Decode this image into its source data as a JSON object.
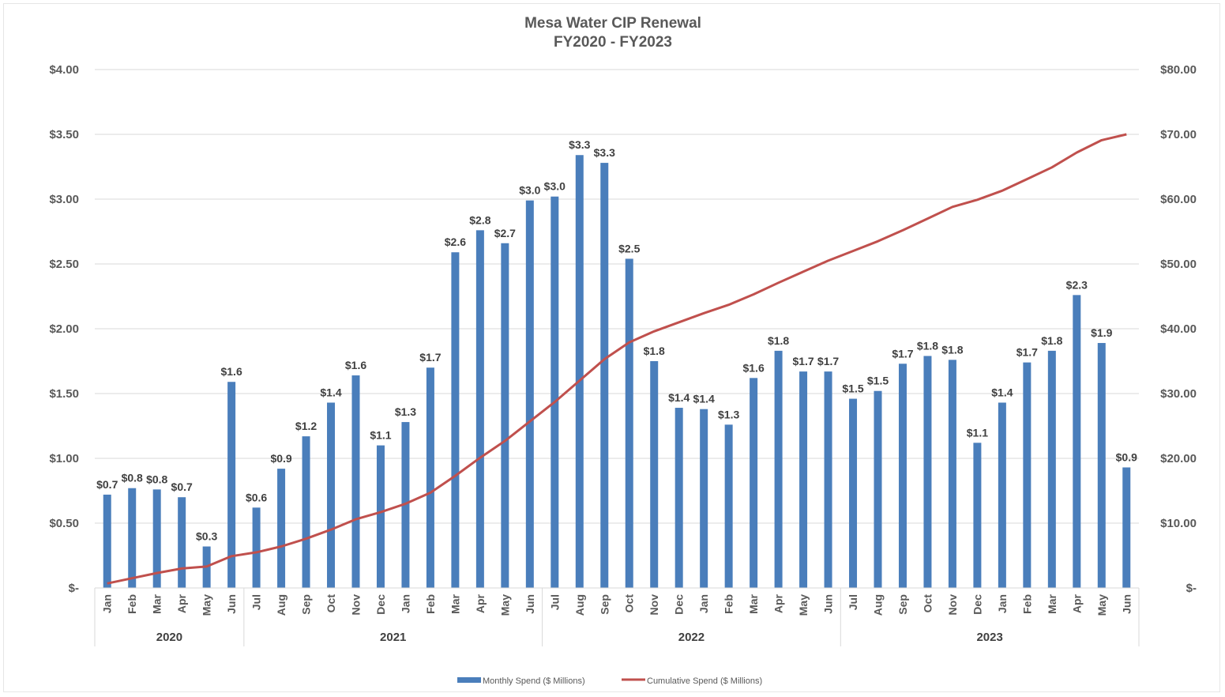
{
  "chart_data": {
    "type": "bar",
    "title": "Mesa Water CIP Renewal",
    "subtitle": "FY2020 - FY2023",
    "xlabel": "",
    "ylabel": "",
    "grid": true,
    "legend_placement": "bottom",
    "y_left": {
      "range": [
        0,
        4
      ],
      "ticks": [
        0,
        0.5,
        1.0,
        1.5,
        2.0,
        2.5,
        3.0,
        3.5,
        4.0
      ],
      "tick_labels": [
        "$-",
        "$0.50",
        "$1.00",
        "$1.50",
        "$2.00",
        "$2.50",
        "$3.00",
        "$3.50",
        "$4.00"
      ]
    },
    "y_right": {
      "range": [
        0,
        80
      ],
      "ticks": [
        0,
        10,
        20,
        30,
        40,
        50,
        60,
        70,
        80
      ],
      "tick_labels": [
        "$-",
        "$10.00",
        "$20.00",
        "$30.00",
        "$40.00",
        "$50.00",
        "$60.00",
        "$70.00",
        "$80.00"
      ]
    },
    "categories": [
      "Jan",
      "Feb",
      "Mar",
      "Apr",
      "May",
      "Jun",
      "Jul",
      "Aug",
      "Sep",
      "Oct",
      "Nov",
      "Dec",
      "Jan",
      "Feb",
      "Mar",
      "Apr",
      "May",
      "Jun",
      "Jul",
      "Aug",
      "Sep",
      "Oct",
      "Nov",
      "Dec",
      "Jan",
      "Feb",
      "Mar",
      "Apr",
      "May",
      "Jun",
      "Jul",
      "Aug",
      "Sep",
      "Oct",
      "Nov",
      "Dec",
      "Jan",
      "Feb",
      "Mar",
      "Apr",
      "May",
      "Jun"
    ],
    "groups": [
      {
        "label": "2020",
        "start": 0,
        "end": 5
      },
      {
        "label": "2021",
        "start": 6,
        "end": 17
      },
      {
        "label": "2022",
        "start": 18,
        "end": 29
      },
      {
        "label": "2023",
        "start": 30,
        "end": 41
      }
    ],
    "series": [
      {
        "name": "Monthly Spend ($ Millions)",
        "type": "bar",
        "axis": "left",
        "color": "#4a7ebb",
        "values": [
          0.72,
          0.77,
          0.76,
          0.7,
          0.32,
          1.59,
          0.62,
          0.92,
          1.17,
          1.43,
          1.64,
          1.1,
          1.28,
          1.7,
          2.59,
          2.76,
          2.66,
          2.99,
          3.02,
          3.34,
          3.28,
          2.54,
          1.75,
          1.39,
          1.38,
          1.26,
          1.62,
          1.83,
          1.67,
          1.67,
          1.46,
          1.52,
          1.73,
          1.79,
          1.76,
          1.12,
          1.43,
          1.74,
          1.83,
          2.26,
          1.89,
          0.93
        ],
        "data_labels": [
          "$0.7",
          "$0.8",
          "$0.8",
          "$0.7",
          "$0.3",
          "$1.6",
          "$0.6",
          "$0.9",
          "$1.2",
          "$1.4",
          "$1.6",
          "$1.1",
          "$1.3",
          "$1.7",
          "$2.6",
          "$2.8",
          "$2.7",
          "$3.0",
          "$3.0",
          "$3.3",
          "$3.3",
          "$2.5",
          "$1.8",
          "$1.4",
          "$1.4",
          "$1.3",
          "$1.6",
          "$1.8",
          "$1.7",
          "$1.7",
          "$1.5",
          "$1.5",
          "$1.7",
          "$1.8",
          "$1.8",
          "$1.1",
          "$1.4",
          "$1.7",
          "$1.8",
          "$2.3",
          "$1.9",
          "$0.9"
        ]
      },
      {
        "name": "Cumulative Spend ($ Millions)",
        "type": "line",
        "axis": "right",
        "color": "#c0504d",
        "values": [
          0.7,
          1.5,
          2.3,
          3.0,
          3.3,
          4.9,
          5.5,
          6.4,
          7.6,
          9.0,
          10.6,
          11.7,
          13.0,
          14.7,
          17.3,
          20.1,
          22.7,
          25.7,
          28.7,
          32.0,
          35.3,
          37.9,
          39.6,
          41.0,
          42.4,
          43.7,
          45.3,
          47.1,
          48.8,
          50.5,
          52.0,
          53.5,
          55.2,
          57.0,
          58.8,
          59.9,
          61.3,
          63.1,
          64.9,
          67.2,
          69.1,
          70.0
        ]
      }
    ]
  }
}
